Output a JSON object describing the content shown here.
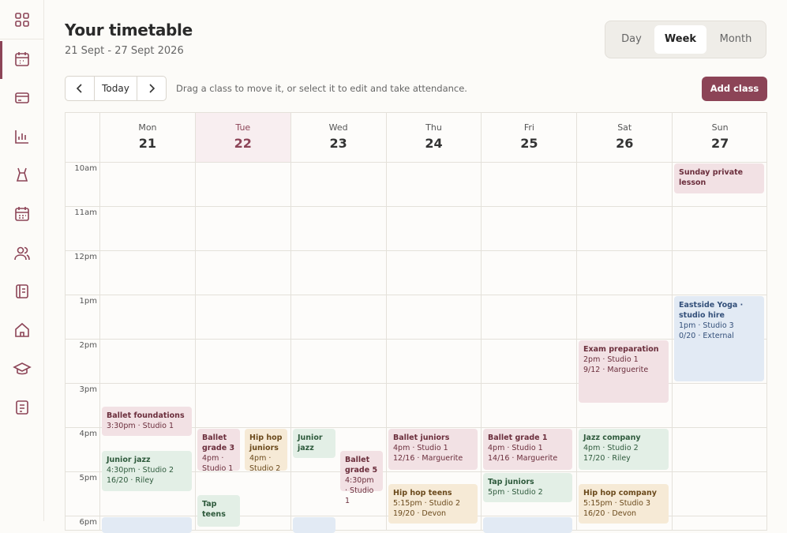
{
  "header": {
    "title": "Your timetable",
    "subtitle": "21 Sept - 27 Sept 2026"
  },
  "view_switch": [
    "Day",
    "Week",
    "Month"
  ],
  "toolbar": {
    "today": "Today",
    "hint": "Drag a class to move it, or select it to edit and take attendance.",
    "add": "Add class"
  },
  "days": [
    {
      "name": "Mon",
      "date": "21"
    },
    {
      "name": "Tue",
      "date": "22"
    },
    {
      "name": "Wed",
      "date": "23"
    },
    {
      "name": "Thu",
      "date": "24"
    },
    {
      "name": "Fri",
      "date": "25"
    },
    {
      "name": "Sat",
      "date": "26"
    },
    {
      "name": "Sun",
      "date": "27"
    }
  ],
  "hours": [
    "10am",
    "11am",
    "12pm",
    "1pm",
    "2pm",
    "3pm",
    "4pm",
    "5pm",
    "6pm"
  ],
  "events": [
    {
      "title": "Sunday private lesson",
      "lines": []
    },
    {
      "title": "Eastside Yoga · studio hire",
      "lines": [
        "1pm · Studio 3",
        "0/20 · External"
      ]
    },
    {
      "title": "Exam preparation",
      "lines": [
        "2pm · Studio 1",
        "9/12 · Marguerite"
      ]
    },
    {
      "title": "Ballet foundations",
      "lines": [
        "3:30pm · Studio 1"
      ]
    },
    {
      "title": "Junior jazz",
      "lines": [
        "4:30pm · Studio 2",
        "16/20 · Riley"
      ]
    },
    {
      "title": "Ballet grade 3",
      "lines": [
        "4pm · Studio 1"
      ]
    },
    {
      "title": "Hip hop juniors",
      "lines": [
        "4pm · Studio 2"
      ]
    },
    {
      "title": "Tap teens",
      "lines": []
    },
    {
      "title": "Junior jazz",
      "lines": []
    },
    {
      "title": "Ballet grade 5",
      "lines": [
        "4:30pm · Studio 1"
      ]
    },
    {
      "title": "Ballet juniors",
      "lines": [
        "4pm · Studio 1",
        "12/16 · Marguerite"
      ]
    },
    {
      "title": "Hip hop teens",
      "lines": [
        "5:15pm · Studio 2",
        "19/20 · Devon"
      ]
    },
    {
      "title": "Ballet grade 1",
      "lines": [
        "4pm · Studio 1",
        "14/16 · Marguerite"
      ]
    },
    {
      "title": "Tap juniors",
      "lines": [
        "5pm · Studio 2"
      ]
    },
    {
      "title": "Jazz company",
      "lines": [
        "4pm · Studio 2",
        "17/20 · Riley"
      ]
    },
    {
      "title": "Hip hop company",
      "lines": [
        "5:15pm · Studio 3",
        "16/20 · Devon"
      ]
    }
  ]
}
